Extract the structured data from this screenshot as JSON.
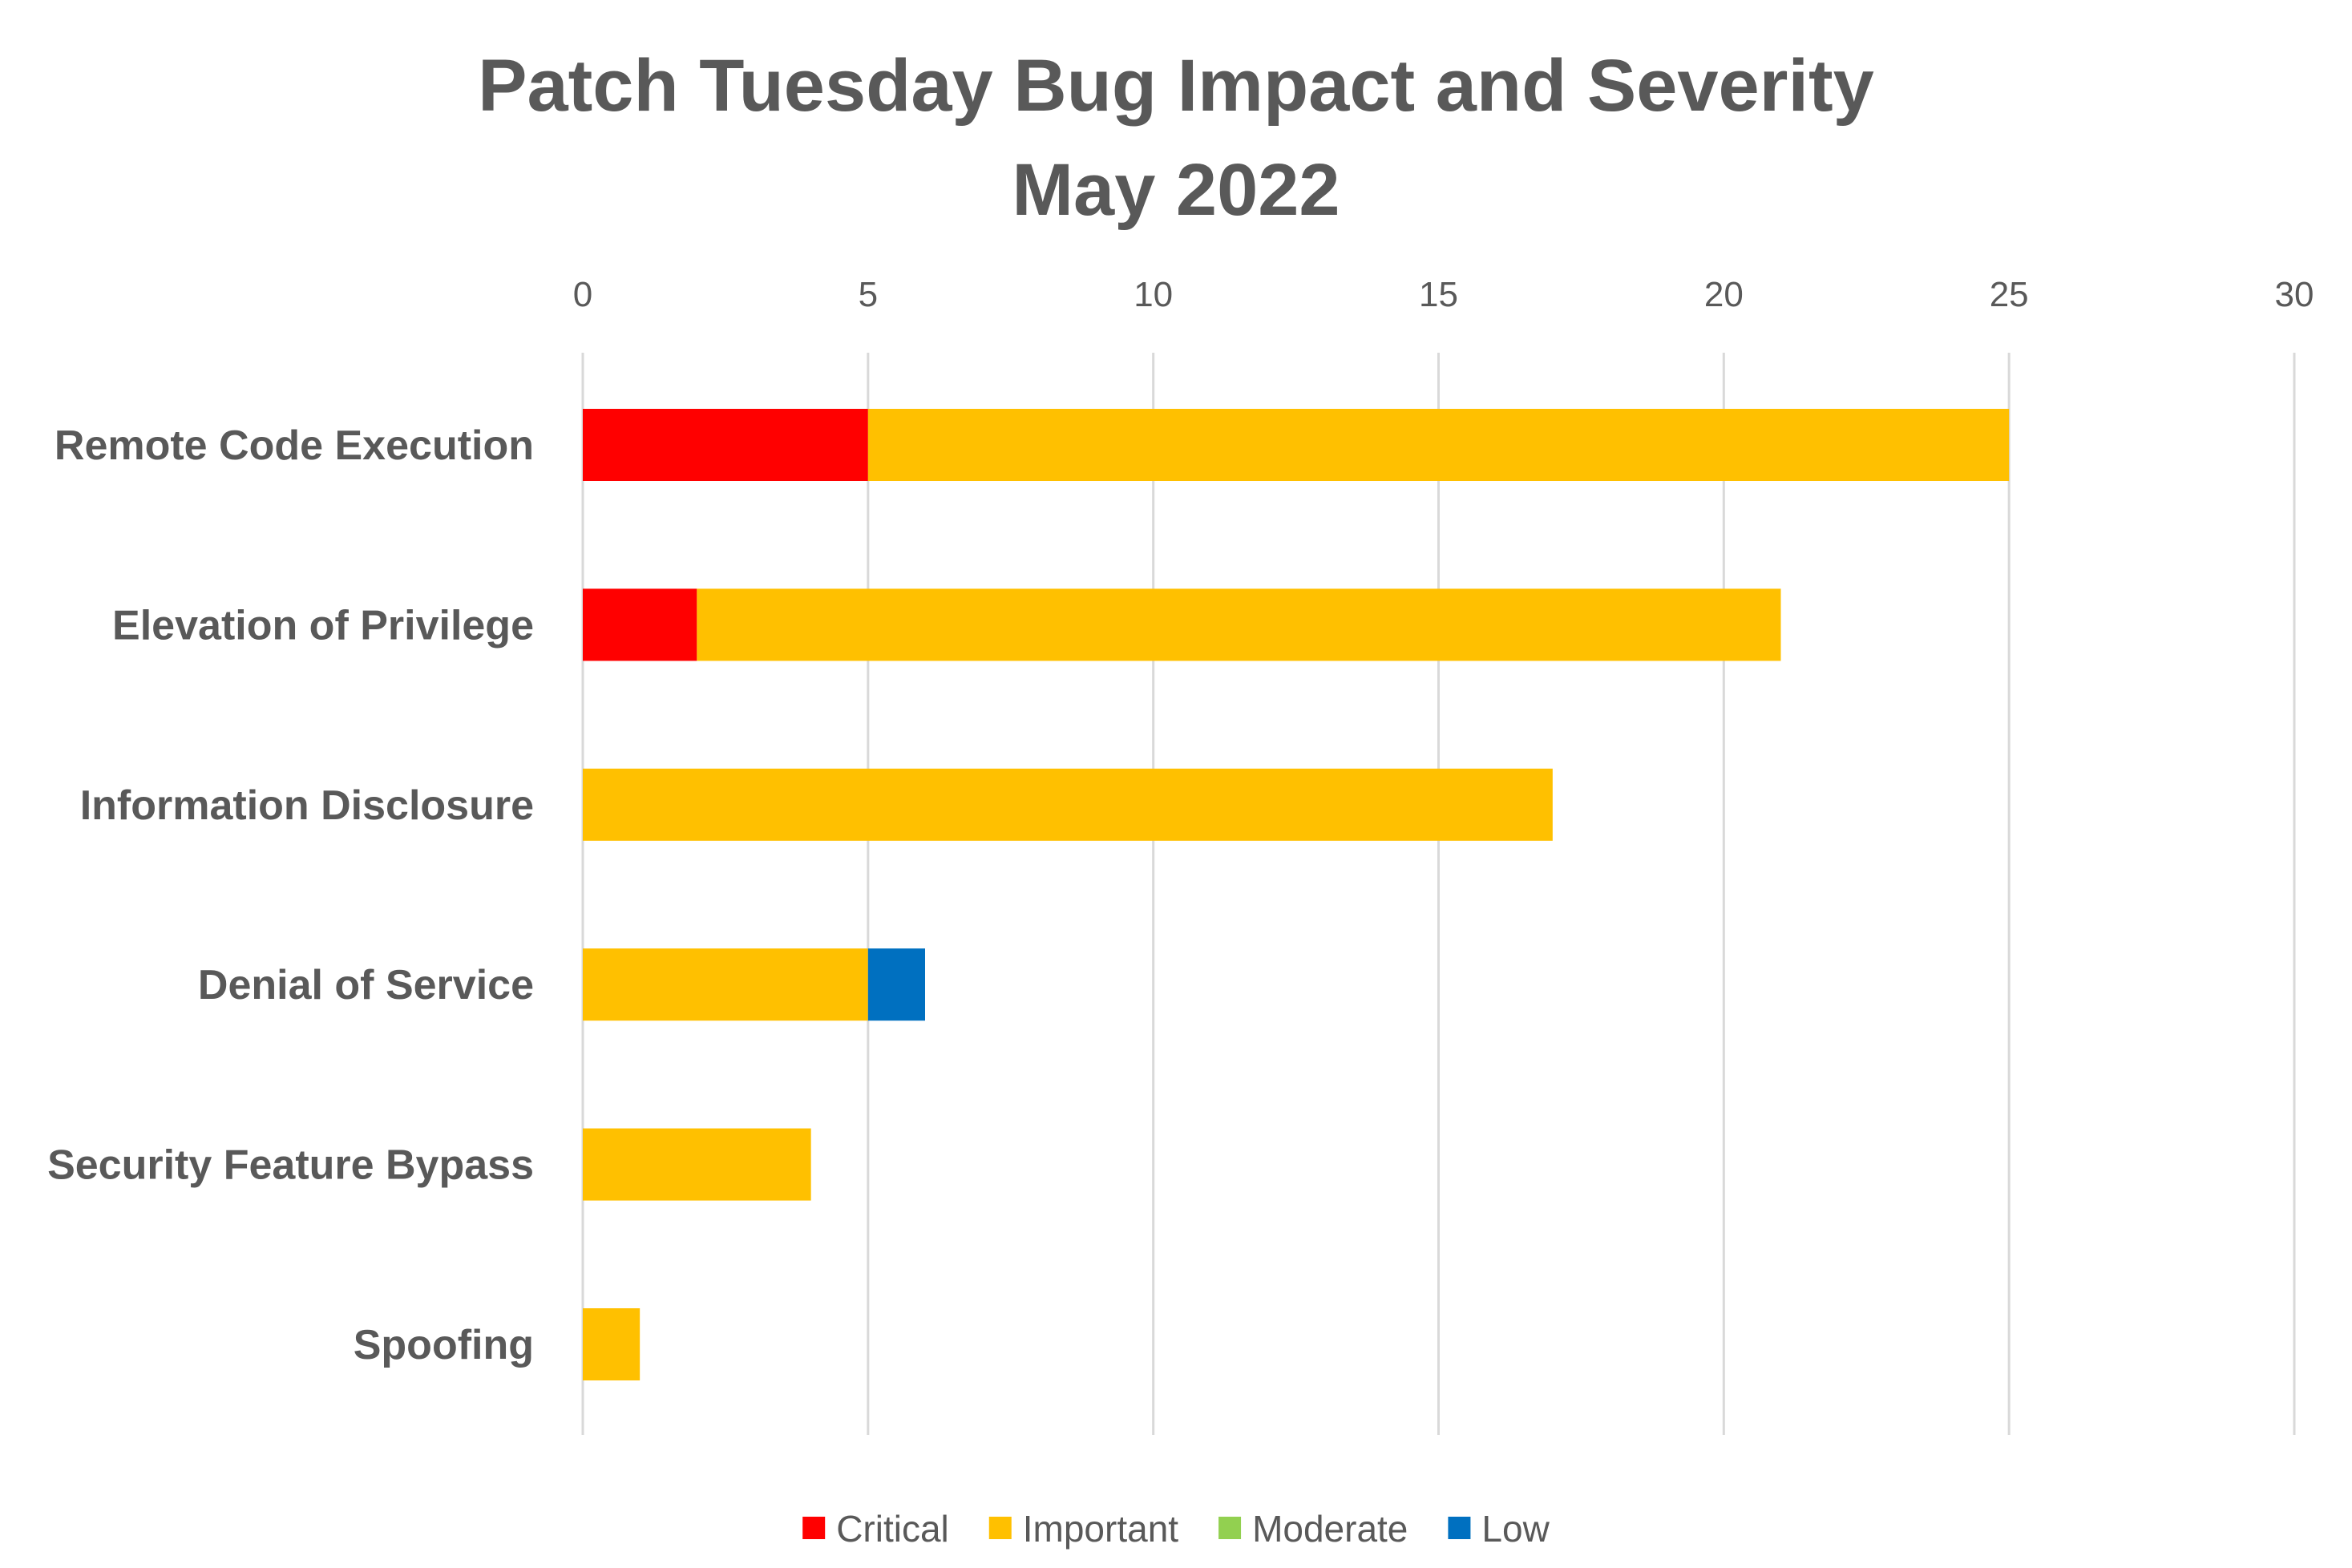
{
  "chart_data": {
    "type": "bar",
    "orientation": "horizontal",
    "stacked": true,
    "title": [
      "Patch Tuesday Bug Impact and Severity",
      "May 2022"
    ],
    "categories": [
      "Remote Code Execution",
      "Elevation of Privilege",
      "Information Disclosure",
      "Denial of Service",
      "Security Feature Bypass",
      "Spoofing"
    ],
    "series": [
      {
        "name": "Critical",
        "color": "#ff0000",
        "values": [
          5,
          2,
          0,
          0,
          0,
          0
        ]
      },
      {
        "name": "Important",
        "color": "#ffc000",
        "values": [
          20,
          19,
          17,
          5,
          4,
          1
        ]
      },
      {
        "name": "Moderate",
        "color": "#92d050",
        "values": [
          0,
          0,
          0,
          0,
          0,
          0
        ]
      },
      {
        "name": "Low",
        "color": "#0070c0",
        "values": [
          0,
          0,
          0,
          1,
          0,
          0
        ]
      }
    ],
    "xlim": [
      0,
      30
    ],
    "xticks": [
      0,
      5,
      10,
      15,
      20,
      25,
      30
    ],
    "x_axis_position": "top",
    "grid": true,
    "legend_position": "bottom"
  }
}
